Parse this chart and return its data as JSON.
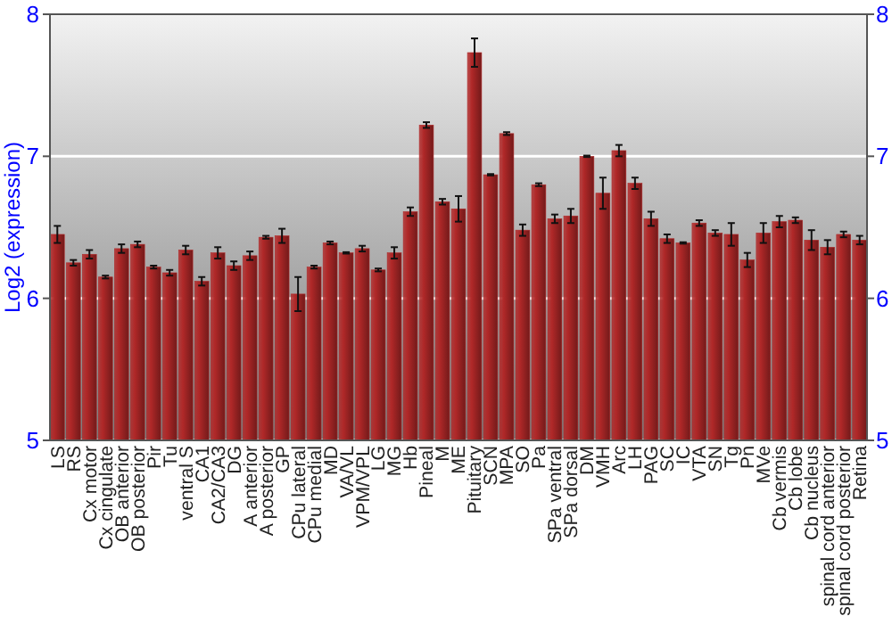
{
  "chart_data": {
    "type": "bar",
    "ylabel": "Log2 (expression)",
    "categories": [
      "LS",
      "RS",
      "Cx motor",
      "Cx cingulate",
      "OB anterior",
      "OB posterior",
      "Pir",
      "Tu",
      "ventral S",
      "CA1",
      "CA2/CA3",
      "DG",
      "A anterior",
      "A posterior",
      "GP",
      "CPu lateral",
      "CPu medial",
      "MD",
      "VA/VL",
      "VPM/VPL",
      "LG",
      "MG",
      "Hb",
      "Pineal",
      "M",
      "ME",
      "Pituitary",
      "SCN",
      "MPA",
      "SO",
      "Pa",
      "SPa ventral",
      "SPa dorsal",
      "DM",
      "VMH",
      "Arc",
      "LH",
      "PAG",
      "SC",
      "IC",
      "VTA",
      "SN",
      "Tg",
      "Pn",
      "MVe",
      "Cb vermis",
      "Cb lobe",
      "Cb nucleus",
      "spinal cord anterior",
      "spinal cord posterior",
      "Retina"
    ],
    "values": [
      6.45,
      6.25,
      6.31,
      6.15,
      6.35,
      6.38,
      6.22,
      6.18,
      6.34,
      6.12,
      6.32,
      6.23,
      6.3,
      6.43,
      6.44,
      6.03,
      6.22,
      6.39,
      6.32,
      6.35,
      6.2,
      6.32,
      6.61,
      7.22,
      6.68,
      6.63,
      7.73,
      6.87,
      7.16,
      6.48,
      6.8,
      6.56,
      6.58,
      7.0,
      6.74,
      7.04,
      6.81,
      6.56,
      6.42,
      6.39,
      6.53,
      6.46,
      6.45,
      6.27,
      6.46,
      6.54,
      6.55,
      6.41,
      6.36,
      6.45,
      6.41
    ],
    "errors": [
      0.06,
      0.02,
      0.03,
      0.01,
      0.03,
      0.02,
      0.01,
      0.02,
      0.03,
      0.03,
      0.04,
      0.03,
      0.03,
      0.01,
      0.05,
      0.12,
      0.01,
      0.01,
      0.005,
      0.02,
      0.01,
      0.04,
      0.03,
      0.02,
      0.02,
      0.09,
      0.1,
      0.005,
      0.01,
      0.04,
      0.01,
      0.03,
      0.05,
      0.005,
      0.11,
      0.04,
      0.04,
      0.05,
      0.03,
      0.005,
      0.02,
      0.02,
      0.08,
      0.05,
      0.07,
      0.04,
      0.02,
      0.07,
      0.05,
      0.02,
      0.03
    ],
    "color": "#b02828",
    "ylim": [
      5,
      8
    ],
    "yticks": [
      5,
      6,
      7,
      8
    ],
    "y2lim": [
      5,
      8
    ],
    "y2ticks": [
      5,
      6,
      7,
      8
    ],
    "grid": "y"
  }
}
